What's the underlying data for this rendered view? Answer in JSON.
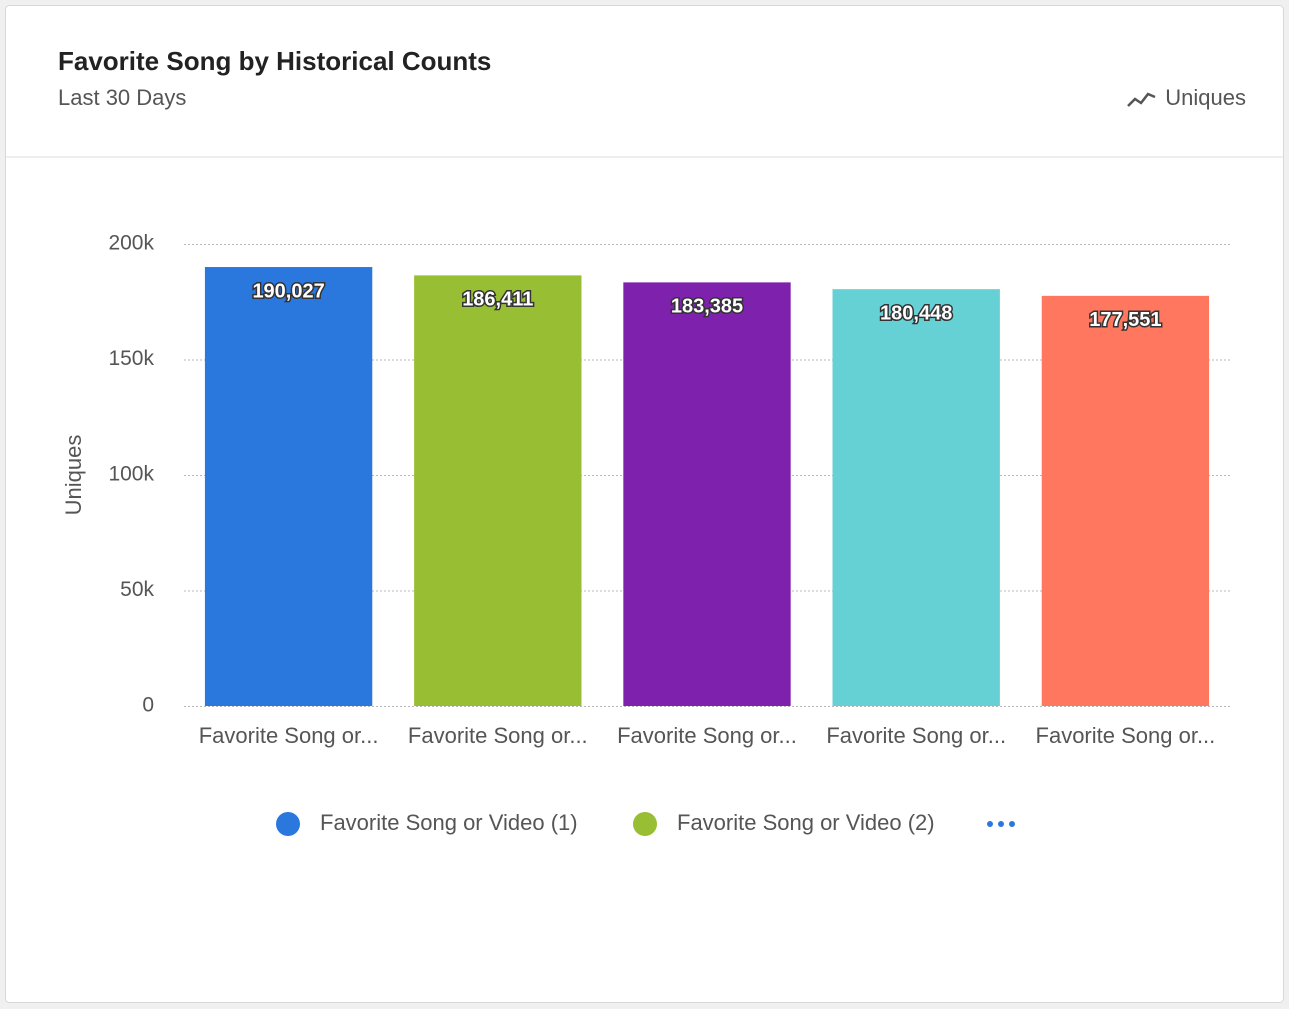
{
  "chart_data": {
    "type": "bar",
    "title": "Favorite Song by Historical Counts",
    "subtitle": "Last 30 Days",
    "metric": "Uniques",
    "y_label": "Uniques",
    "categories": [
      "Favorite Song or...",
      "Favorite Song or...",
      "Favorite Song or...",
      "Favorite Song or...",
      "Favorite Song or..."
    ],
    "values": [
      190027,
      186411,
      183385,
      180448,
      177551
    ],
    "value_labels": [
      "190,027",
      "186,411",
      "183,385",
      "180,448",
      "177,551"
    ],
    "colors": [
      "#2a78de",
      "#98be33",
      "#7e22ad",
      "#65d1d5",
      "#ff775f"
    ],
    "ylim": [
      0,
      200000
    ],
    "yticks": [
      0,
      {
        "value": 50000,
        "label": "50k"
      },
      {
        "value": 100000,
        "label": "100k"
      },
      {
        "value": 150000,
        "label": "150k"
      },
      {
        "value": 200000,
        "label": "200k"
      }
    ],
    "grid": true,
    "legend": [
      {
        "name": "Favorite Song or Video (1)",
        "color": "#2a78de"
      },
      {
        "name": "Favorite Song or Video (2)",
        "color": "#98be33"
      }
    ]
  }
}
